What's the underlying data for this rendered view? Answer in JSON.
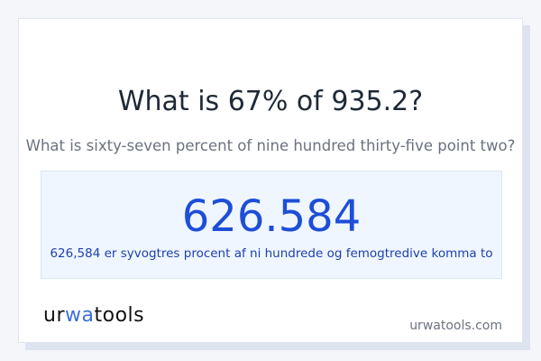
{
  "question": "What is 67% of 935.2?",
  "question_words": "What is sixty-seven percent of nine hundred thirty-five point two?",
  "result": "626.584",
  "result_words": "626,584 er syvogtres procent af ni hundrede og femogtredive komma to",
  "logo": {
    "part1": "ur",
    "part2": "wa",
    "part3": "tools"
  },
  "site": "urwatools.com",
  "colors": {
    "accent": "#1d4ed8",
    "result_bg": "#eff6ff"
  }
}
